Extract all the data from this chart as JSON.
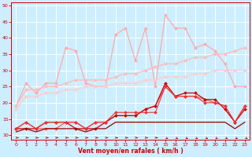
{
  "xlabel": "Vent moyen/en rafales ( km/h )",
  "background_color": "#cceeff",
  "grid_color": "#ffffff",
  "x": [
    0,
    1,
    2,
    3,
    4,
    5,
    6,
    7,
    8,
    9,
    10,
    11,
    12,
    13,
    14,
    15,
    16,
    17,
    18,
    19,
    20,
    21,
    22,
    23
  ],
  "ylim": [
    8.5,
    51
  ],
  "yticks": [
    10,
    15,
    20,
    25,
    30,
    35,
    40,
    45,
    50
  ],
  "lines": [
    {
      "y": [
        19,
        26,
        23,
        26,
        26,
        37,
        36,
        26,
        25,
        25,
        41,
        43,
        33,
        43,
        25,
        47,
        43,
        43,
        37,
        38,
        36,
        32,
        25,
        25
      ],
      "color": "#ffaaaa",
      "lw": 0.9,
      "marker": "D",
      "ms": 2.0
    },
    {
      "y": [
        19,
        24,
        24,
        25,
        25,
        26,
        27,
        27,
        27,
        27,
        28,
        29,
        29,
        30,
        31,
        32,
        32,
        33,
        34,
        34,
        35,
        35,
        36,
        37
      ],
      "color": "#ffbbbb",
      "lw": 1.0,
      "marker": "D",
      "ms": 2.0,
      "linestyle": "-"
    },
    {
      "y": [
        18,
        22,
        22,
        23,
        23,
        24,
        24,
        25,
        25,
        25,
        26,
        26,
        26,
        27,
        27,
        28,
        28,
        28,
        29,
        29,
        30,
        30,
        30,
        30
      ],
      "color": "#ffcccc",
      "lw": 1.0,
      "marker": "D",
      "ms": 2.0,
      "linestyle": "-"
    },
    {
      "y": [
        12,
        14,
        12,
        12,
        12,
        14,
        14,
        12,
        14,
        14,
        16,
        16,
        16,
        18,
        19,
        25,
        22,
        22,
        22,
        21,
        20,
        19,
        14,
        19
      ],
      "color": "#ff5555",
      "lw": 0.9,
      "marker": "D",
      "ms": 2.0
    },
    {
      "y": [
        12,
        12,
        12,
        14,
        14,
        14,
        12,
        12,
        12,
        14,
        16,
        16,
        16,
        18,
        19,
        26,
        22,
        23,
        23,
        21,
        21,
        18,
        14,
        18
      ],
      "color": "#cc0000",
      "lw": 0.9,
      "marker": "D",
      "ms": 2.0
    },
    {
      "y": [
        12,
        14,
        12,
        14,
        14,
        14,
        14,
        12,
        14,
        14,
        17,
        17,
        17,
        17,
        17,
        25,
        22,
        22,
        22,
        20,
        20,
        19,
        14,
        19
      ],
      "color": "#ee3333",
      "lw": 0.8,
      "marker": "D",
      "ms": 2.0
    },
    {
      "y": [
        11,
        12,
        11,
        12,
        12,
        12,
        12,
        11,
        12,
        12,
        14,
        14,
        14,
        14,
        14,
        14,
        14,
        14,
        14,
        14,
        14,
        14,
        12,
        14
      ],
      "color": "#990000",
      "lw": 0.9,
      "marker": null,
      "ms": 0
    }
  ],
  "arrow_directions": [
    0,
    0,
    0,
    0,
    0,
    0,
    0,
    0,
    0,
    0,
    0,
    0,
    0,
    0,
    0,
    1,
    1,
    1,
    1,
    1,
    1,
    1,
    1,
    1
  ],
  "arrow_color": "#cc0000"
}
